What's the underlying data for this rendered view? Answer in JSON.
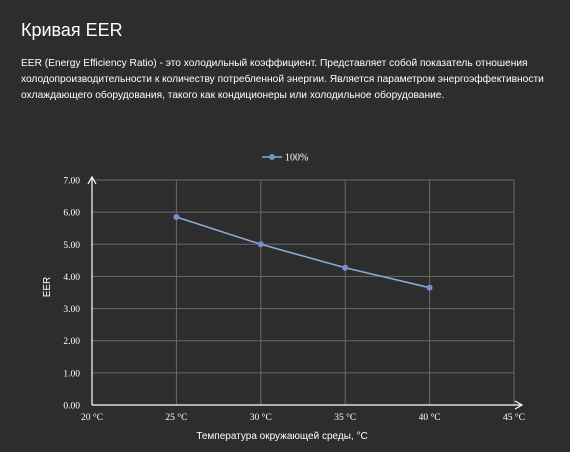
{
  "page": {
    "title": "Кривая EER",
    "description": "EER (Energy Efficiency Ratio) - это холодильный коэффициент. Представляет собой показатель отношения холодопроизводительности к количеству потребленной энергии. Является параметром энергоэффективности охлаждающего оборудования, такого как кондиционеры или холодильное оборудование."
  },
  "colors": {
    "background": "#2d2d2d",
    "series_line": "#8aaad6",
    "marker": "#6f93c9",
    "grid": "#6a6a6a",
    "axis": "#ffffff"
  },
  "chart_data": {
    "type": "line",
    "title": "",
    "xlabel": "Температура окружающей среды, °C",
    "ylabel": "EER",
    "x_ticks": [
      "20 °C",
      "25 °C",
      "30 °C",
      "35 °C",
      "40 °C",
      "45 °C"
    ],
    "x_tick_values": [
      20,
      25,
      30,
      35,
      40,
      45
    ],
    "y_ticks": [
      "0.00",
      "1.00",
      "2.00",
      "3.00",
      "4.00",
      "5.00",
      "6.00",
      "7.00"
    ],
    "xlim": [
      20,
      45
    ],
    "ylim": [
      0,
      7
    ],
    "grid": true,
    "legend_position": "top-center",
    "series": [
      {
        "name": "100%",
        "x": [
          25,
          30,
          35,
          40
        ],
        "values": [
          5.85,
          5.0,
          4.27,
          3.65
        ]
      }
    ]
  }
}
